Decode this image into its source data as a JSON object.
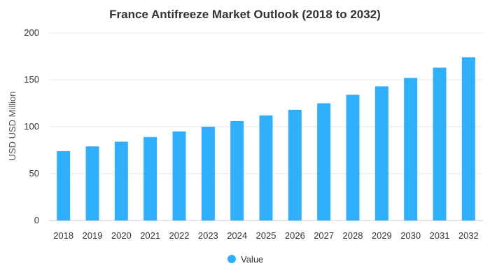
{
  "chart_data": {
    "type": "bar",
    "title": "France Antifreeze Market Outlook (2018 to 2032)",
    "xlabel": "",
    "ylabel": "USD USD Million",
    "ylim": [
      0,
      200
    ],
    "yticks": [
      0,
      50,
      100,
      150,
      200
    ],
    "categories": [
      "2018",
      "2019",
      "2020",
      "2021",
      "2022",
      "2023",
      "2024",
      "2025",
      "2026",
      "2027",
      "2028",
      "2029",
      "2030",
      "2031",
      "2032"
    ],
    "series": [
      {
        "name": "Value",
        "color": "#2faffc",
        "values": [
          74,
          79,
          84,
          89,
          95,
          100,
          106,
          112,
          118,
          125,
          134,
          143,
          152,
          163,
          174
        ]
      }
    ],
    "grid": true,
    "legend": "bottom"
  }
}
